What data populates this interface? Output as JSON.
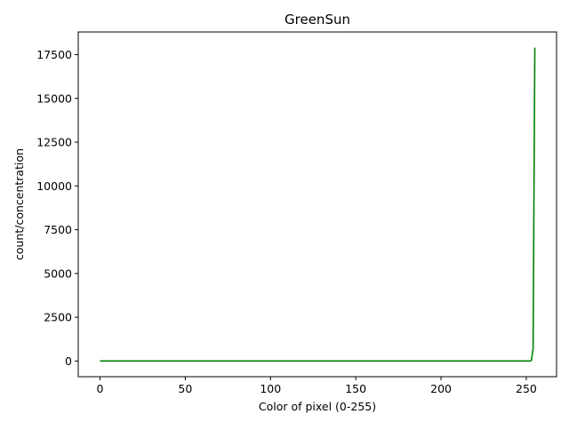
{
  "chart_data": {
    "type": "line",
    "title": "GreenSun",
    "xlabel": "Color of pixel (0-255)",
    "ylabel": "count/concentration",
    "xlim": [
      -12.75,
      267.75
    ],
    "ylim": [
      -895,
      18795
    ],
    "xticks": [
      0,
      50,
      100,
      150,
      200,
      250
    ],
    "yticks": [
      0,
      2500,
      5000,
      7500,
      10000,
      12500,
      15000,
      17500
    ],
    "grid": false,
    "series": [
      {
        "color": "#008000",
        "x": [
          0,
          50,
          100,
          150,
          200,
          250,
          251,
          252,
          253,
          254,
          255
        ],
        "y": [
          0,
          0,
          0,
          0,
          0,
          0,
          0,
          0,
          30,
          700,
          17900
        ]
      }
    ]
  }
}
